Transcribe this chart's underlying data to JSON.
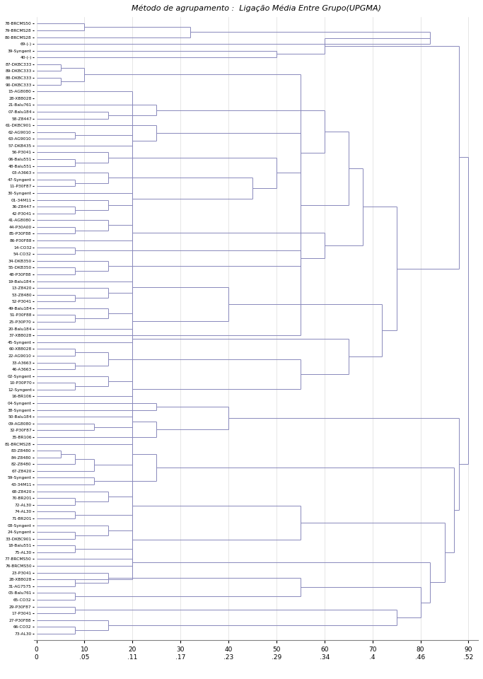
{
  "title": "Método de agrupamento :  Ligação Média Entre Grupo(UPGMA)",
  "labels": [
    "78-BRCMS50",
    "79-BRCMS28",
    "80-BRCMS28",
    "69-(-)",
    "39-Syngent",
    "40-(-)",
    "87-DKBC333",
    "89-DKBC333",
    "88-DKBC333",
    "90-DKBC333",
    "15-AG8080",
    "28-XB8028",
    "21-Balu761",
    "07-Balu184",
    "58-Z8447",
    "61-DKBC901",
    "62-AG9010",
    "63-AG9010",
    "57-DKB435",
    "56-P3041",
    "06-Balu551",
    "48-Balu551",
    "03-A3663",
    "47-Syngent",
    "11-P30F87",
    "30-Syngent",
    "01-34M11",
    "36-Z8447",
    "42-P3041",
    "41-AG8080",
    "44-P30A00",
    "85-P30F88",
    "86-P30F88",
    "14-CO32",
    "54-CO32",
    "34-DKB350",
    "55-DKB350",
    "48-P30F88",
    "19-Balu184",
    "13-Z8420",
    "53-Z8480",
    "52-P3041",
    "49-Balu184",
    "51-P30F88",
    "25-P30P70",
    "20-Balu184",
    "37-XB8028",
    "45-Syngent",
    "60-XB8028",
    "22-AG9010",
    "33-A3663",
    "46-A3663",
    "02-Syngent",
    "10-P30P70",
    "12-Syngent",
    "16-BR106",
    "04-Syngent",
    "38-Syngent",
    "50-Balu184",
    "09-AG8080",
    "32-P30F87",
    "35-BR106",
    "81-BRCMS28",
    "83-Z8480",
    "84-Z8480",
    "82-Z8480",
    "67-Z8420",
    "59-Syngent",
    "43-34M11",
    "68-Z8420",
    "70-BR201",
    "72-AL30",
    "74-AL30",
    "71-BR201",
    "08-Syngent",
    "24-Syngent",
    "33-DKBC901",
    "18-Balu551",
    "75-AL30",
    "77-BRCMS50",
    "76-BRCMS50",
    "23-P3041",
    "28-XB8028",
    "31-AG7575",
    "05-Balu761",
    "65-CO32",
    "29-P30F87",
    "17-P3041",
    "27-P30F88",
    "66-CO32",
    "73-AL30"
  ],
  "line_color": "#8888bb",
  "bg_color": "#ffffff",
  "x_ticks": [
    0,
    10,
    20,
    30,
    40,
    50,
    60,
    70,
    80,
    90
  ],
  "x_tick_labels1": [
    "0",
    "10",
    "20",
    "30",
    "40",
    "50",
    "60",
    "70",
    "80",
    "90"
  ],
  "x_tick_labels2": [
    "0",
    ".05",
    ".11",
    ".17",
    ".23",
    ".29",
    ".34",
    ".4",
    ".46",
    ".52"
  ]
}
